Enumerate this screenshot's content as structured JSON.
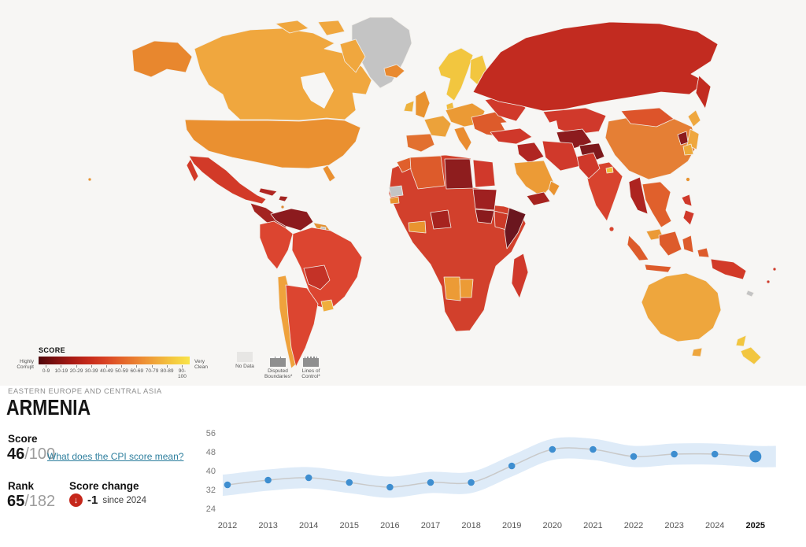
{
  "page": {
    "background": "#FFFFFF",
    "map_background": "#F7F6F4"
  },
  "header": {
    "region_label": "EASTERN EUROPE AND CENTRAL ASIA",
    "country_name": "ARMENIA"
  },
  "panel": {
    "score_label": "Score",
    "score_value": "46",
    "score_max": "/100",
    "cpi_link": "What does the CPI score mean?",
    "link_color": "#2E7F9E",
    "rank_label": "Rank",
    "rank_value": "65",
    "rank_max": "/182",
    "change_label": "Score change",
    "change_icon": "down-arrow",
    "change_icon_glyph": "↓",
    "change_color": "#C5271B",
    "change_value": "-1",
    "change_suffix": "since 2024"
  },
  "map": {
    "legend": {
      "title": "SCORE",
      "left_label": "Highly Corrupt",
      "right_label": "Very Clean",
      "ticks": [
        "0-9",
        "10-19",
        "20-29",
        "30-39",
        "40-49",
        "50-59",
        "60-69",
        "70-79",
        "80-89",
        "90-100"
      ],
      "gradient": [
        "#4F070B",
        "#7E100F",
        "#A81A14",
        "#C62A1B",
        "#D94324",
        "#E4652A",
        "#EC8632",
        "#F0A83A",
        "#F4C93F",
        "#F9E44A"
      ],
      "no_data_label": "No Data",
      "disputed_label": "Disputed Boundaries*",
      "lines_label": "Lines of Control*"
    },
    "region_colors": {
      "greenland": "#C4C4C4",
      "canada": "#F0A73E",
      "alaska": "#E8872E",
      "usa": "#EA9030",
      "mexico": "#D23A28",
      "central_america": "#A32421",
      "cuba": "#B02622",
      "hispaniola": "#A32421",
      "caribbean": "#DE8B33",
      "venezuela": "#8C1B1E",
      "colombia": "#DC4530",
      "guyana": "#E29133",
      "suriname": "#C4C4C4",
      "brazil": "#DC4530",
      "bolivia": "#C43227",
      "chile": "#EFA23C",
      "argentina": "#DC4530",
      "uruguay": "#EFAE3D",
      "iceland": "#E98A30",
      "nordics": "#F2C63F",
      "denmark": "#F0BC3E",
      "uk": "#E9932F",
      "ireland": "#EDB23C",
      "france": "#ECA23A",
      "iberia": "#E2702F",
      "central_europe": "#EB9A35",
      "italy": "#EA8C30",
      "balkans": "#DD5B2B",
      "ukraine": "#D0392B",
      "russia": "#C22B20",
      "kazakh": "#D0392B",
      "turkmen": "#8C1B1E",
      "afghan": "#7D191C",
      "iran": "#D0392B",
      "turkey": "#CF382A",
      "syria_iraq": "#B02622",
      "saudi": "#EC9B36",
      "yemen": "#A6231F",
      "oman": "#E9932F",
      "india": "#D8432E",
      "pakistan": "#CF382A",
      "bhutan": "#F0C23E",
      "china": "#E57F35",
      "mongolia": "#DD542A",
      "myanmar": "#AD2420",
      "se_asia": "#E0602C",
      "malaysia": "#EB9A35",
      "indonesia": "#DD5B2B",
      "philippines": "#D0392B",
      "japan": "#EFA73E",
      "nkorea": "#8C1B1E",
      "skorea": "#EDAA3A",
      "taiwan": "#E9932F",
      "sri_lanka": "#D8432E",
      "africa_base": "#D2402C",
      "wsahara": "#C4C4C4",
      "morocco": "#E0602C",
      "algeria": "#DD5B2B",
      "libya": "#8E1D1E",
      "egypt": "#D0392B",
      "senegal": "#E9932F",
      "ghana": "#E9932F",
      "nigeria": "#A6231F",
      "sudan": "#9F2020",
      "ssudan": "#8A1B1D",
      "ethiopia": "#CC3A28",
      "somalia": "#6B161F",
      "namibia": "#EC9B36",
      "botswana": "#EC9B36",
      "madagascar": "#D0392B",
      "australia": "#EEA63D",
      "nz": "#F2C63F",
      "png": "#D23A28",
      "newcal": "#C4C4C4",
      "fiji": "#D0392B",
      "hawaii": "#E9932F",
      "water": "#F7F6F4"
    }
  },
  "chart_data": {
    "type": "line",
    "title": "",
    "xlabel": "",
    "ylabel": "",
    "x": [
      "2012",
      "2013",
      "2014",
      "2015",
      "2016",
      "2017",
      "2018",
      "2019",
      "2020",
      "2021",
      "2022",
      "2023",
      "2024",
      "2025"
    ],
    "values": [
      34,
      36,
      37,
      35,
      33,
      35,
      35,
      42,
      49,
      49,
      46,
      47,
      47,
      46
    ],
    "series_name": "CPI score",
    "band_halfwidth": 4.5,
    "yticks": [
      56,
      48,
      40,
      32,
      24
    ],
    "ylim": [
      20,
      60
    ],
    "grid": false,
    "legend_position": "none",
    "highlight_last_x": "2025",
    "point_color": "#3E8ED0",
    "line_color": "#C9C9C9",
    "band_color": "#DEEBF8"
  }
}
